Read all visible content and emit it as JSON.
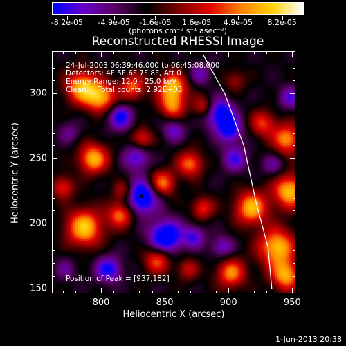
{
  "colorbar": {
    "labels": [
      "-8.2e-05",
      "-4.9e-05",
      "-1.6e-05",
      "1.6e-05",
      "4.9e-05",
      "8.2e-05"
    ],
    "units_text": "(photons cm⁻² s⁻¹ asec⁻²)",
    "min": -8.2e-05,
    "max": 8.2e-05,
    "colors": [
      "#0000ff",
      "#6a00c8",
      "#5a0064",
      "#000000",
      "#7a0000",
      "#e00000",
      "#ff8000",
      "#ffd000",
      "#ffffff"
    ]
  },
  "chart_data": {
    "type": "heatmap",
    "title": "Reconstructed RHESSI Image",
    "xlabel": "Heliocentric X (arcsec)",
    "ylabel": "Heliocentric Y (arcsec)",
    "xlim": [
      762,
      952
    ],
    "ylim": [
      147,
      332
    ],
    "x_ticks": [
      800,
      850,
      900,
      950
    ],
    "y_ticks": [
      150,
      200,
      250,
      300
    ],
    "limb_line": [
      [
        880,
        330
      ],
      [
        897,
        300
      ],
      [
        912,
        260
      ],
      [
        922,
        215
      ],
      [
        931,
        182
      ],
      [
        934,
        150
      ]
    ],
    "peak": {
      "x": 937,
      "y": 182
    },
    "min_marker": {
      "x": 832,
      "y": 221
    },
    "blobs": [
      {
        "x": 785,
        "y": 305,
        "v": 0.95,
        "s": 9
      },
      {
        "x": 800,
        "y": 297,
        "v": 0.9,
        "s": 8
      },
      {
        "x": 825,
        "y": 305,
        "v": 0.7,
        "s": 7
      },
      {
        "x": 856,
        "y": 305,
        "v": 0.95,
        "s": 8
      },
      {
        "x": 856,
        "y": 290,
        "v": 0.7,
        "s": 7
      },
      {
        "x": 832,
        "y": 265,
        "v": 0.6,
        "s": 6
      },
      {
        "x": 794,
        "y": 250,
        "v": 0.95,
        "s": 8
      },
      {
        "x": 818,
        "y": 225,
        "v": 0.5,
        "s": 6
      },
      {
        "x": 848,
        "y": 231,
        "v": 0.8,
        "s": 7
      },
      {
        "x": 870,
        "y": 246,
        "v": 0.75,
        "s": 7
      },
      {
        "x": 881,
        "y": 290,
        "v": 0.55,
        "s": 6
      },
      {
        "x": 880,
        "y": 212,
        "v": 0.6,
        "s": 6
      },
      {
        "x": 787,
        "y": 197,
        "v": 1.0,
        "s": 10
      },
      {
        "x": 815,
        "y": 207,
        "v": 0.75,
        "s": 7
      },
      {
        "x": 844,
        "y": 172,
        "v": 0.7,
        "s": 7
      },
      {
        "x": 902,
        "y": 162,
        "v": 0.8,
        "s": 8
      },
      {
        "x": 918,
        "y": 212,
        "v": 0.95,
        "s": 9
      },
      {
        "x": 927,
        "y": 277,
        "v": 0.6,
        "s": 7
      },
      {
        "x": 948,
        "y": 225,
        "v": 1.0,
        "s": 9
      },
      {
        "x": 946,
        "y": 265,
        "v": 0.85,
        "s": 8
      },
      {
        "x": 938,
        "y": 182,
        "v": 1.0,
        "s": 10
      },
      {
        "x": 945,
        "y": 160,
        "v": 0.9,
        "s": 8
      },
      {
        "x": 868,
        "y": 165,
        "v": 0.45,
        "s": 6
      },
      {
        "x": 770,
        "y": 228,
        "v": 0.6,
        "s": 6
      },
      {
        "x": 905,
        "y": 310,
        "v": 0.35,
        "s": 6
      },
      {
        "x": 806,
        "y": 165,
        "v": -0.7,
        "s": 7
      },
      {
        "x": 832,
        "y": 221,
        "v": -1.0,
        "s": 9
      },
      {
        "x": 851,
        "y": 190,
        "v": -0.95,
        "s": 9
      },
      {
        "x": 828,
        "y": 251,
        "v": -0.6,
        "s": 7
      },
      {
        "x": 815,
        "y": 282,
        "v": -0.7,
        "s": 7
      },
      {
        "x": 893,
        "y": 285,
        "v": -0.85,
        "s": 8
      },
      {
        "x": 901,
        "y": 272,
        "v": -0.7,
        "s": 7
      },
      {
        "x": 905,
        "y": 250,
        "v": -0.55,
        "s": 7
      },
      {
        "x": 857,
        "y": 272,
        "v": -0.5,
        "s": 6
      },
      {
        "x": 873,
        "y": 190,
        "v": -0.55,
        "s": 6
      },
      {
        "x": 895,
        "y": 182,
        "v": -0.5,
        "s": 6
      },
      {
        "x": 878,
        "y": 315,
        "v": -0.4,
        "s": 6
      },
      {
        "x": 948,
        "y": 297,
        "v": -0.5,
        "s": 6
      },
      {
        "x": 935,
        "y": 245,
        "v": -0.35,
        "s": 6
      },
      {
        "x": 772,
        "y": 165,
        "v": -0.3,
        "s": 6
      },
      {
        "x": 775,
        "y": 270,
        "v": -0.3,
        "s": 6
      }
    ]
  },
  "info": {
    "line1": "24-Jul-2003 06:39:46.000 to 06:45:08.000",
    "line2": "Detectors: 4F 5F 6F 7F 8F, Att 0",
    "line3": "Energy Range: 12.0 - 25.0 keV",
    "line4": "Clean     Total counts: 2.92E+03",
    "peak_text": "Position of Peak = [937,182]"
  },
  "timestamp": "1-Jun-2013 20:38"
}
